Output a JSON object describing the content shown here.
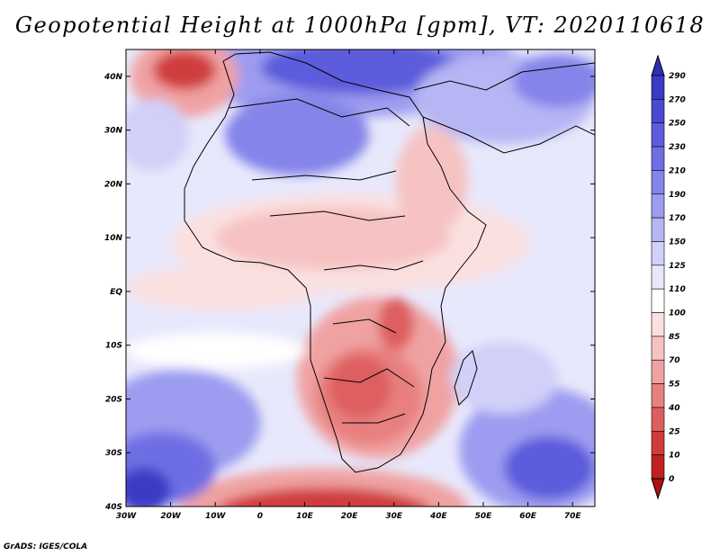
{
  "title": "Geopotential Height at 1000hPa [gpm], VT: 2020110618",
  "footer": "GrADS: IGES/COLA",
  "map": {
    "lon_range": [
      -30,
      75
    ],
    "lat_range": [
      -40,
      45
    ],
    "x_ticks": [
      "30W",
      "20W",
      "10W",
      "0",
      "10E",
      "20E",
      "30E",
      "40E",
      "50E",
      "60E",
      "70E"
    ],
    "y_ticks": [
      "40S",
      "30S",
      "20S",
      "10S",
      "EQ",
      "10N",
      "20N",
      "30N",
      "40N"
    ]
  },
  "colorbar": {
    "levels": [
      "290",
      "270",
      "250",
      "230",
      "210",
      "190",
      "170",
      "150",
      "125",
      "110",
      "100",
      "85",
      "70",
      "55",
      "40",
      "25",
      "10",
      "0"
    ],
    "colors": [
      "#2e2eb8",
      "#3a3ac6",
      "#4a4ad2",
      "#5c5cdc",
      "#6e6ee4",
      "#8484ea",
      "#9c9cf0",
      "#b6b6f4",
      "#d0d0f8",
      "#e8e8fc",
      "#ffffff",
      "#fbe0e0",
      "#f6c2c2",
      "#f0a2a2",
      "#e88080",
      "#de5e5e",
      "#d03c3c",
      "#c02020",
      "#ac1010"
    ]
  }
}
